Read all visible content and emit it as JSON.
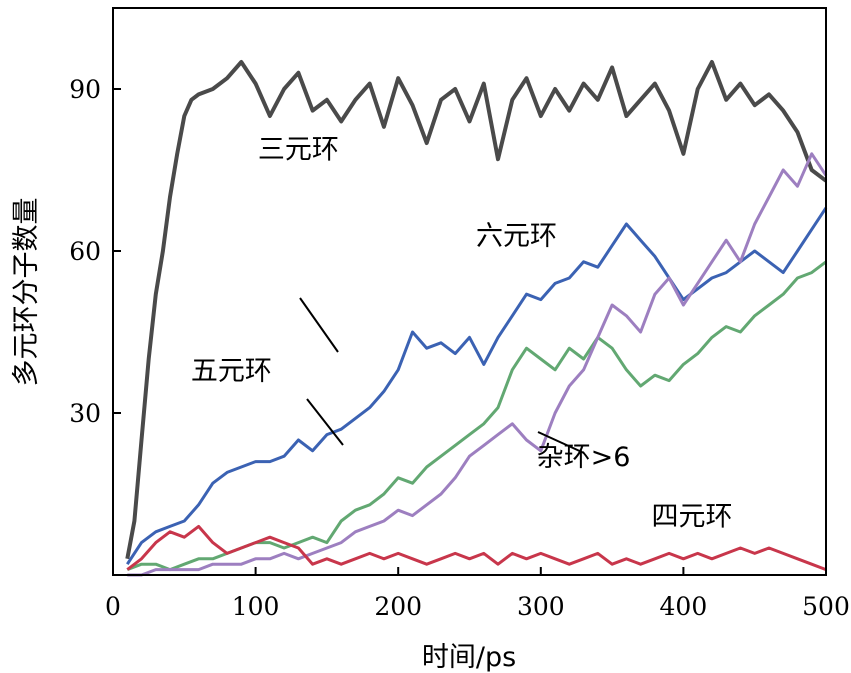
{
  "chart_data": {
    "type": "line",
    "title": "",
    "xlabel": "时间/ps",
    "ylabel": "多元环分子数量",
    "xlim": [
      0,
      500
    ],
    "ylim": [
      0,
      105
    ],
    "xticks": [
      "0",
      "100",
      "200",
      "300",
      "400",
      "500"
    ],
    "yticks": [
      "30",
      "60",
      "90"
    ],
    "grid": false,
    "legend": "none",
    "series": [
      {
        "name": "三元环",
        "color": "#4a4a4a",
        "x": [
          10,
          15,
          20,
          25,
          30,
          35,
          40,
          45,
          50,
          55,
          60,
          70,
          80,
          90,
          100,
          110,
          120,
          130,
          140,
          150,
          160,
          170,
          180,
          190,
          200,
          210,
          220,
          230,
          240,
          250,
          260,
          270,
          280,
          290,
          300,
          310,
          320,
          330,
          340,
          350,
          360,
          370,
          380,
          390,
          400,
          410,
          420,
          430,
          440,
          450,
          460,
          470,
          480,
          490,
          500
        ],
        "y": [
          3,
          10,
          25,
          40,
          52,
          60,
          70,
          78,
          85,
          88,
          89,
          90,
          92,
          95,
          91,
          85,
          90,
          93,
          86,
          88,
          84,
          88,
          91,
          83,
          92,
          87,
          80,
          88,
          90,
          84,
          91,
          77,
          88,
          92,
          85,
          90,
          86,
          91,
          88,
          94,
          85,
          88,
          91,
          86,
          78,
          90,
          95,
          88,
          91,
          87,
          89,
          86,
          82,
          75,
          73
        ]
      },
      {
        "name": "五元环",
        "color": "#3b62b3",
        "x": [
          10,
          20,
          30,
          40,
          50,
          60,
          70,
          80,
          90,
          100,
          110,
          120,
          130,
          140,
          150,
          160,
          170,
          180,
          190,
          200,
          210,
          220,
          230,
          240,
          250,
          260,
          270,
          280,
          290,
          300,
          310,
          320,
          330,
          340,
          350,
          360,
          370,
          380,
          390,
          400,
          410,
          420,
          430,
          440,
          450,
          460,
          470,
          480,
          490,
          500
        ],
        "y": [
          2,
          6,
          8,
          9,
          10,
          13,
          17,
          19,
          20,
          21,
          21,
          22,
          25,
          23,
          26,
          27,
          29,
          31,
          34,
          38,
          45,
          42,
          43,
          41,
          44,
          39,
          44,
          48,
          52,
          51,
          54,
          55,
          58,
          57,
          61,
          65,
          62,
          59,
          55,
          51,
          53,
          55,
          56,
          58,
          60,
          58,
          56,
          60,
          64,
          68
        ]
      },
      {
        "name": "六元环",
        "color": "#62a872",
        "x": [
          10,
          20,
          30,
          40,
          50,
          60,
          70,
          80,
          90,
          100,
          110,
          120,
          130,
          140,
          150,
          160,
          170,
          180,
          190,
          200,
          210,
          220,
          230,
          240,
          250,
          260,
          270,
          280,
          290,
          300,
          310,
          320,
          330,
          340,
          350,
          360,
          370,
          380,
          390,
          400,
          410,
          420,
          430,
          440,
          450,
          460,
          470,
          480,
          490,
          500
        ],
        "y": [
          1,
          2,
          2,
          1,
          2,
          3,
          3,
          4,
          5,
          6,
          6,
          5,
          6,
          7,
          6,
          10,
          12,
          13,
          15,
          18,
          17,
          20,
          22,
          24,
          26,
          28,
          31,
          38,
          42,
          40,
          38,
          42,
          40,
          44,
          42,
          38,
          35,
          37,
          36,
          39,
          41,
          44,
          46,
          45,
          48,
          50,
          52,
          55,
          56,
          58
        ]
      },
      {
        "name": "杂环>6",
        "color": "#9d7fc0",
        "x": [
          10,
          20,
          30,
          40,
          50,
          60,
          70,
          80,
          90,
          100,
          110,
          120,
          130,
          140,
          150,
          160,
          170,
          180,
          190,
          200,
          210,
          220,
          230,
          240,
          250,
          260,
          270,
          280,
          290,
          300,
          310,
          320,
          330,
          340,
          350,
          360,
          370,
          380,
          390,
          400,
          410,
          420,
          430,
          440,
          450,
          460,
          470,
          480,
          490,
          500
        ],
        "y": [
          0,
          0,
          1,
          1,
          1,
          1,
          2,
          2,
          2,
          3,
          3,
          4,
          3,
          4,
          5,
          6,
          8,
          9,
          10,
          12,
          11,
          13,
          15,
          18,
          22,
          24,
          26,
          28,
          25,
          23,
          30,
          35,
          38,
          44,
          50,
          48,
          45,
          52,
          55,
          50,
          54,
          58,
          62,
          58,
          65,
          70,
          75,
          72,
          78,
          74
        ]
      },
      {
        "name": "四元环",
        "color": "#c8364b",
        "x": [
          10,
          20,
          30,
          40,
          50,
          60,
          70,
          80,
          90,
          100,
          110,
          120,
          130,
          140,
          150,
          160,
          170,
          180,
          190,
          200,
          210,
          220,
          230,
          240,
          250,
          260,
          270,
          280,
          290,
          300,
          310,
          320,
          330,
          340,
          350,
          360,
          370,
          380,
          390,
          400,
          410,
          420,
          430,
          440,
          450,
          460,
          470,
          480,
          490,
          500
        ],
        "y": [
          1,
          3,
          6,
          8,
          7,
          9,
          6,
          4,
          5,
          6,
          7,
          6,
          5,
          2,
          3,
          2,
          3,
          4,
          3,
          4,
          3,
          2,
          3,
          4,
          3,
          4,
          2,
          4,
          3,
          4,
          3,
          2,
          3,
          4,
          2,
          3,
          2,
          3,
          4,
          3,
          4,
          3,
          4,
          5,
          4,
          5,
          4,
          3,
          2,
          1
        ]
      }
    ],
    "annotations": [
      {
        "text": "三元环",
        "x": 130,
        "y": 79
      },
      {
        "text": "六元环",
        "x": 283,
        "y": 63
      },
      {
        "text": "五元环",
        "x": 83,
        "y": 38
      },
      {
        "text": "杂环>6",
        "x": 330,
        "y": 22
      },
      {
        "text": "四元环",
        "x": 406,
        "y": 11
      }
    ]
  }
}
